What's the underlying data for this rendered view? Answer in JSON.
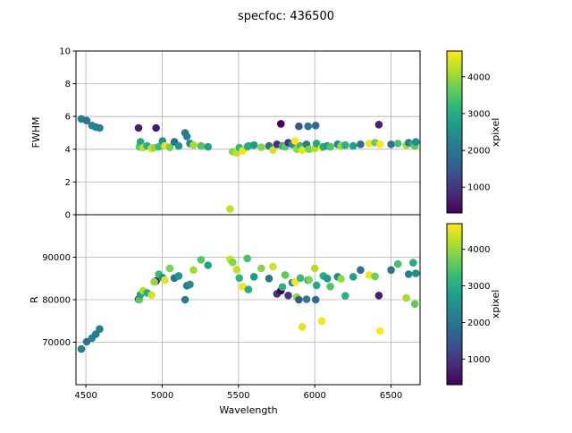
{
  "chart_data": [
    {
      "type": "scatter",
      "title": "specfoc: 436500",
      "xlabel": "Wavelength",
      "ylabel": "FWHM",
      "xlim": [
        4435,
        6690
      ],
      "ylim": [
        0,
        10
      ],
      "xticks": [
        4500,
        5000,
        5500,
        6000,
        6500
      ],
      "yticks": [
        0,
        2,
        4,
        6,
        8,
        10
      ],
      "grid": true,
      "colorbar": {
        "label": "xpixel",
        "colormap": "viridis",
        "ticks": [
          1000,
          2000,
          3000,
          4000
        ],
        "vmin": 300,
        "vmax": 4700
      },
      "points": [
        [
          4470,
          5.85,
          2200
        ],
        [
          4505,
          5.75,
          2000
        ],
        [
          4540,
          5.45,
          2300
        ],
        [
          4565,
          5.35,
          2100
        ],
        [
          4590,
          5.3,
          2200
        ],
        [
          4845,
          5.3,
          650
        ],
        [
          4960,
          5.3,
          600
        ],
        [
          4850,
          4.15,
          3600
        ],
        [
          4858,
          4.45,
          2900
        ],
        [
          4875,
          4.1,
          4200
        ],
        [
          4902,
          4.2,
          3000
        ],
        [
          4930,
          4.05,
          4400
        ],
        [
          4948,
          4.1,
          4000
        ],
        [
          4978,
          4.15,
          3300
        ],
        [
          5002,
          4.5,
          2500
        ],
        [
          5018,
          4.2,
          4500
        ],
        [
          5050,
          4.12,
          3800
        ],
        [
          5080,
          4.45,
          1900
        ],
        [
          5108,
          4.2,
          2600
        ],
        [
          5150,
          5.0,
          2100
        ],
        [
          5162,
          4.78,
          2200
        ],
        [
          5182,
          4.35,
          2400
        ],
        [
          5205,
          4.25,
          4100
        ],
        [
          5255,
          4.2,
          3500
        ],
        [
          5300,
          4.15,
          2800
        ],
        [
          5445,
          0.35,
          4300
        ],
        [
          5462,
          3.85,
          3900
        ],
        [
          5488,
          3.78,
          4300
        ],
        [
          5505,
          4.1,
          3200
        ],
        [
          5528,
          3.9,
          4600
        ],
        [
          5558,
          4.15,
          3400
        ],
        [
          5565,
          4.2,
          3000
        ],
        [
          5602,
          4.25,
          2700
        ],
        [
          5650,
          4.12,
          3900
        ],
        [
          5700,
          4.2,
          2000
        ],
        [
          5726,
          3.95,
          4400
        ],
        [
          5752,
          4.3,
          900
        ],
        [
          5778,
          5.55,
          300
        ],
        [
          5788,
          4.2,
          3100
        ],
        [
          5806,
          4.15,
          3600
        ],
        [
          5826,
          4.4,
          1000
        ],
        [
          5852,
          4.3,
          2500
        ],
        [
          5872,
          4.5,
          4700
        ],
        [
          5882,
          4.0,
          4000
        ],
        [
          5896,
          5.4,
          1500
        ],
        [
          5906,
          4.2,
          3300
        ],
        [
          5918,
          3.95,
          4500
        ],
        [
          5946,
          4.3,
          2100
        ],
        [
          5956,
          5.4,
          2000
        ],
        [
          5962,
          4.0,
          3800
        ],
        [
          6000,
          4.05,
          4200
        ],
        [
          6006,
          5.45,
          1800
        ],
        [
          6012,
          4.35,
          2900
        ],
        [
          6046,
          4.1,
          4600
        ],
        [
          6056,
          4.15,
          3000
        ],
        [
          6082,
          4.2,
          2600
        ],
        [
          6102,
          4.15,
          3500
        ],
        [
          6150,
          4.3,
          2300
        ],
        [
          6172,
          4.2,
          4000
        ],
        [
          6200,
          4.25,
          3100
        ],
        [
          6252,
          4.2,
          2800
        ],
        [
          6300,
          4.3,
          1900
        ],
        [
          6356,
          4.35,
          4600
        ],
        [
          6395,
          4.4,
          3700
        ],
        [
          6420,
          5.5,
          700
        ],
        [
          6428,
          4.3,
          4700
        ],
        [
          6500,
          4.3,
          2000
        ],
        [
          6545,
          4.35,
          3400
        ],
        [
          6600,
          4.25,
          4100
        ],
        [
          6615,
          4.4,
          2200
        ],
        [
          6645,
          4.3,
          3000
        ],
        [
          6656,
          4.2,
          3600
        ],
        [
          6662,
          4.45,
          2400
        ]
      ]
    },
    {
      "type": "scatter",
      "xlabel": "Wavelength",
      "ylabel": "R",
      "xlim": [
        4435,
        6690
      ],
      "ylim": [
        60000,
        100000
      ],
      "xticks": [
        4500,
        5000,
        5500,
        6000,
        6500
      ],
      "yticks": [
        70000,
        80000,
        90000
      ],
      "grid": true,
      "colorbar": {
        "label": "xpixel",
        "colormap": "viridis",
        "ticks": [
          1000,
          2000,
          3000,
          4000
        ],
        "vmin": 300,
        "vmax": 4700
      },
      "points": [
        [
          4470,
          68400,
          2200
        ],
        [
          4505,
          70100,
          2000
        ],
        [
          4540,
          71000,
          2300
        ],
        [
          4565,
          71900,
          2100
        ],
        [
          4590,
          73100,
          2200
        ],
        [
          4845,
          80100,
          650
        ],
        [
          4960,
          84400,
          600
        ],
        [
          4850,
          80000,
          3600
        ],
        [
          4858,
          81200,
          2900
        ],
        [
          4875,
          82100,
          4200
        ],
        [
          4902,
          81600,
          3000
        ],
        [
          4930,
          81100,
          4400
        ],
        [
          4948,
          84200,
          4000
        ],
        [
          4978,
          86000,
          3300
        ],
        [
          5002,
          85200,
          2500
        ],
        [
          5018,
          84600,
          4500
        ],
        [
          5050,
          87400,
          3800
        ],
        [
          5080,
          85100,
          1900
        ],
        [
          5108,
          85600,
          2600
        ],
        [
          5150,
          80000,
          2100
        ],
        [
          5162,
          83300,
          2200
        ],
        [
          5182,
          83600,
          2400
        ],
        [
          5205,
          87000,
          4100
        ],
        [
          5255,
          89400,
          3500
        ],
        [
          5300,
          88100,
          2800
        ],
        [
          5445,
          89500,
          4300
        ],
        [
          5462,
          88800,
          3900
        ],
        [
          5488,
          87100,
          4300
        ],
        [
          5505,
          85100,
          3200
        ],
        [
          5528,
          83100,
          4600
        ],
        [
          5558,
          89700,
          3400
        ],
        [
          5565,
          82400,
          3000
        ],
        [
          5602,
          85400,
          2700
        ],
        [
          5650,
          87400,
          3900
        ],
        [
          5700,
          85000,
          2000
        ],
        [
          5726,
          87800,
          4400
        ],
        [
          5752,
          81400,
          900
        ],
        [
          5778,
          82100,
          300
        ],
        [
          5788,
          83000,
          3100
        ],
        [
          5806,
          85800,
          3600
        ],
        [
          5826,
          81000,
          1000
        ],
        [
          5852,
          84000,
          2500
        ],
        [
          5872,
          84200,
          4700
        ],
        [
          5882,
          80600,
          4000
        ],
        [
          5896,
          80000,
          1500
        ],
        [
          5906,
          85100,
          3300
        ],
        [
          5918,
          73600,
          4500
        ],
        [
          5946,
          80100,
          2100
        ],
        [
          5956,
          84600,
          2000
        ],
        [
          5962,
          84700,
          3800
        ],
        [
          6000,
          87400,
          4200
        ],
        [
          6006,
          80000,
          1800
        ],
        [
          6012,
          83400,
          2900
        ],
        [
          6046,
          75000,
          4600
        ],
        [
          6056,
          85600,
          3000
        ],
        [
          6082,
          85000,
          2600
        ],
        [
          6102,
          83100,
          3500
        ],
        [
          6150,
          85400,
          2300
        ],
        [
          6172,
          84900,
          4000
        ],
        [
          6200,
          80900,
          3100
        ],
        [
          6252,
          85400,
          2800
        ],
        [
          6300,
          87000,
          1900
        ],
        [
          6356,
          85800,
          4600
        ],
        [
          6395,
          85500,
          3700
        ],
        [
          6420,
          81000,
          700
        ],
        [
          6428,
          72600,
          4700
        ],
        [
          6500,
          87000,
          2000
        ],
        [
          6545,
          88400,
          3400
        ],
        [
          6600,
          80400,
          4100
        ],
        [
          6615,
          86000,
          2200
        ],
        [
          6645,
          88700,
          3000
        ],
        [
          6656,
          79000,
          3600
        ],
        [
          6662,
          86200,
          2400
        ]
      ]
    }
  ]
}
